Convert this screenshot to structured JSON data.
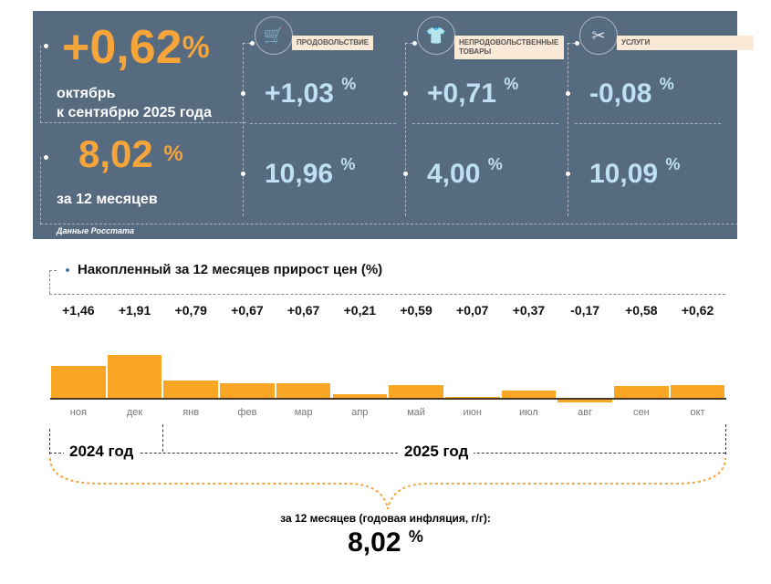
{
  "header": {
    "monthly_value": "+0,62",
    "monthly_pct": "%",
    "monthly_caption_1": "октябрь",
    "monthly_caption_2": "к сентябрю 2025 года",
    "annual_value": "8,02",
    "annual_pct": "%",
    "annual_caption": "за 12 месяцев",
    "source": "Данные Росстата",
    "categories": [
      {
        "label": "ПРОДОВОЛЬСТВИЕ",
        "icon": "shopping-cart-icon",
        "monthly": "+1,03",
        "annual": "10,96",
        "pct": "%"
      },
      {
        "label": "НЕПРОДОВОЛЬСТВЕННЫЕ ТОВАРЫ",
        "icon": "clothing-bag-icon",
        "monthly": "+0,71",
        "annual": "4,00",
        "pct": "%"
      },
      {
        "label": "УСЛУГИ",
        "icon": "scissors-comb-icon",
        "monthly": "-0,08",
        "annual": "10,09",
        "pct": "%"
      }
    ]
  },
  "colors": {
    "panel": "#566a80",
    "accent": "#f5a53a",
    "bar": "#f8a623",
    "value_blue": "#bfe0f2"
  },
  "chart_data": {
    "type": "bar",
    "title": "Накопленный за 12 месяцев прирост цен (%)",
    "categories": [
      "ноя",
      "дек",
      "янв",
      "фев",
      "мар",
      "апр",
      "май",
      "июн",
      "июл",
      "авг",
      "сен",
      "окт"
    ],
    "values": [
      1.46,
      1.91,
      0.79,
      0.67,
      0.67,
      0.21,
      0.59,
      0.07,
      0.37,
      -0.17,
      0.58,
      0.62
    ],
    "labels": [
      "+1,46",
      "+1,91",
      "+0,79",
      "+0,67",
      "+0,67",
      "+0,21",
      "+0,59",
      "+0,07",
      "+0,37",
      "-0,17",
      "+0,58",
      "+0,62"
    ],
    "groups": [
      "2024 год",
      "2025 год"
    ]
  },
  "footer": {
    "caption": "за 12 месяцев (годовая инфляция, г/г):",
    "value": "8,02",
    "pct": "%"
  }
}
